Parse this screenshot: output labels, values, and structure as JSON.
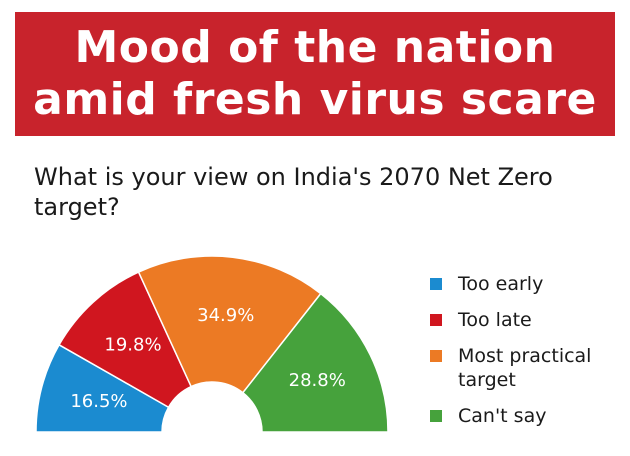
{
  "header": {
    "title_line1": "Mood of the nation",
    "title_line2": "amid fresh virus scare"
  },
  "question": "What is your view on India's 2070 Net Zero target?",
  "colors": {
    "banner": "#c8232c",
    "too_early": "#1b8bd0",
    "too_late": "#d0161f",
    "most_practical": "#ec7a24",
    "cant_say": "#46a23c"
  },
  "chart_data": {
    "type": "pie",
    "variant": "half-donut",
    "title": "",
    "legend_position": "right",
    "categories": [
      "Too early",
      "Too late",
      "Most practical target",
      "Can't say"
    ],
    "values": [
      16.5,
      19.8,
      34.9,
      28.8
    ],
    "labels": [
      "16.5%",
      "19.8%",
      "34.9%",
      "28.8%"
    ],
    "legend": [
      {
        "label": "Too early",
        "color": "#1b8bd0"
      },
      {
        "label": "Too late",
        "color": "#d0161f"
      },
      {
        "label": "Most practical target",
        "color": "#ec7a24"
      },
      {
        "label": "Can't say",
        "color": "#46a23c"
      }
    ]
  }
}
